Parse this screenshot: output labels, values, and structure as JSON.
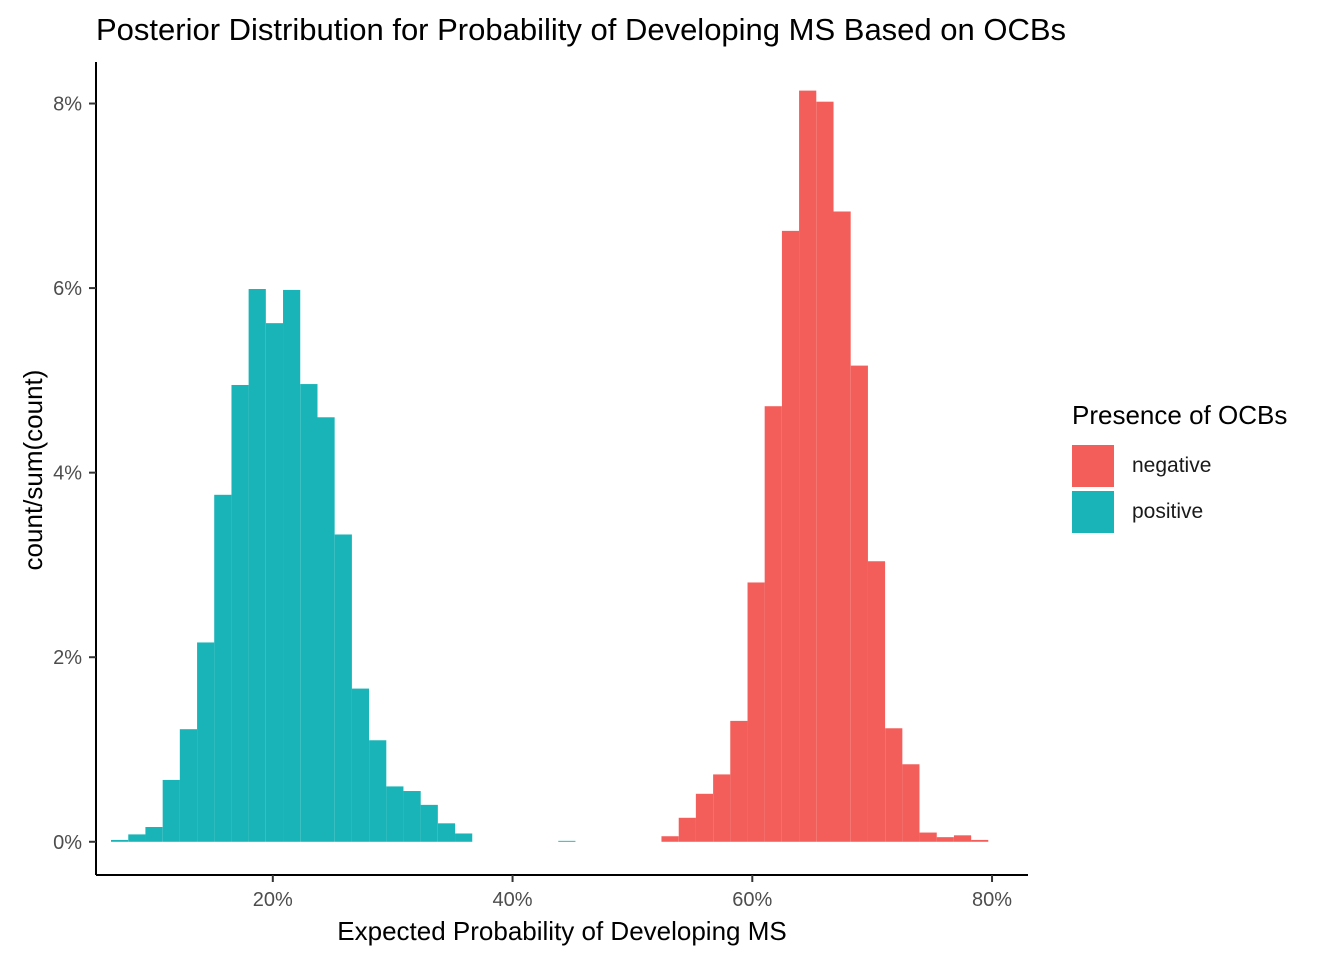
{
  "chart_data": {
    "type": "bar",
    "title": "Posterior Distribution for Probability of Developing MS Based on OCBs",
    "xlabel": "Expected Probability of Developing MS",
    "ylabel": "count/sum(count)",
    "xlim": [
      0.0525,
      0.83
    ],
    "ylim": [
      -0.0036,
      0.0845
    ],
    "x_ticks": [
      0.2,
      0.4,
      0.6,
      0.8
    ],
    "x_tick_labels": [
      "20%",
      "40%",
      "60%",
      "80%"
    ],
    "y_ticks": [
      0,
      0.02,
      0.04,
      0.06,
      0.08
    ],
    "y_tick_labels": [
      "0%",
      "2%",
      "4%",
      "6%",
      "8%"
    ],
    "bin_width": 0.01435,
    "grid": false,
    "legend": {
      "title": "Presence of OCBs",
      "position": "right",
      "entries": [
        {
          "name": "negative",
          "color": "#F35E5A"
        },
        {
          "name": "positive",
          "color": "#19B4B7"
        }
      ]
    },
    "series": [
      {
        "name": "negative",
        "color": "#F35E5A",
        "x": [
          0.5314,
          0.5458,
          0.5601,
          0.5745,
          0.5888,
          0.6032,
          0.6175,
          0.6319,
          0.6462,
          0.6606,
          0.6749,
          0.6893,
          0.7036,
          0.718,
          0.7323,
          0.7467,
          0.761,
          0.7754,
          0.7897
        ],
        "values": [
          0.0006,
          0.0026,
          0.0052,
          0.0073,
          0.0131,
          0.0281,
          0.0472,
          0.0662,
          0.0814,
          0.0802,
          0.0683,
          0.0516,
          0.0304,
          0.0123,
          0.0084,
          0.001,
          0.0005,
          0.0007,
          0.0002
        ]
      },
      {
        "name": "positive",
        "color": "#19B4B7",
        "x": [
          0.0722,
          0.0866,
          0.1009,
          0.1153,
          0.1296,
          0.144,
          0.1583,
          0.1727,
          0.187,
          0.2014,
          0.2157,
          0.2301,
          0.2444,
          0.2588,
          0.2731,
          0.2875,
          0.3018,
          0.3162,
          0.3305,
          0.3449,
          0.3592,
          0.4453
        ],
        "values": [
          0.0002,
          0.0008,
          0.0016,
          0.0067,
          0.0122,
          0.0216,
          0.0376,
          0.0495,
          0.0599,
          0.0562,
          0.0598,
          0.0496,
          0.046,
          0.0333,
          0.0166,
          0.011,
          0.006,
          0.0055,
          0.004,
          0.002,
          0.0009,
          0.0001
        ]
      }
    ]
  }
}
